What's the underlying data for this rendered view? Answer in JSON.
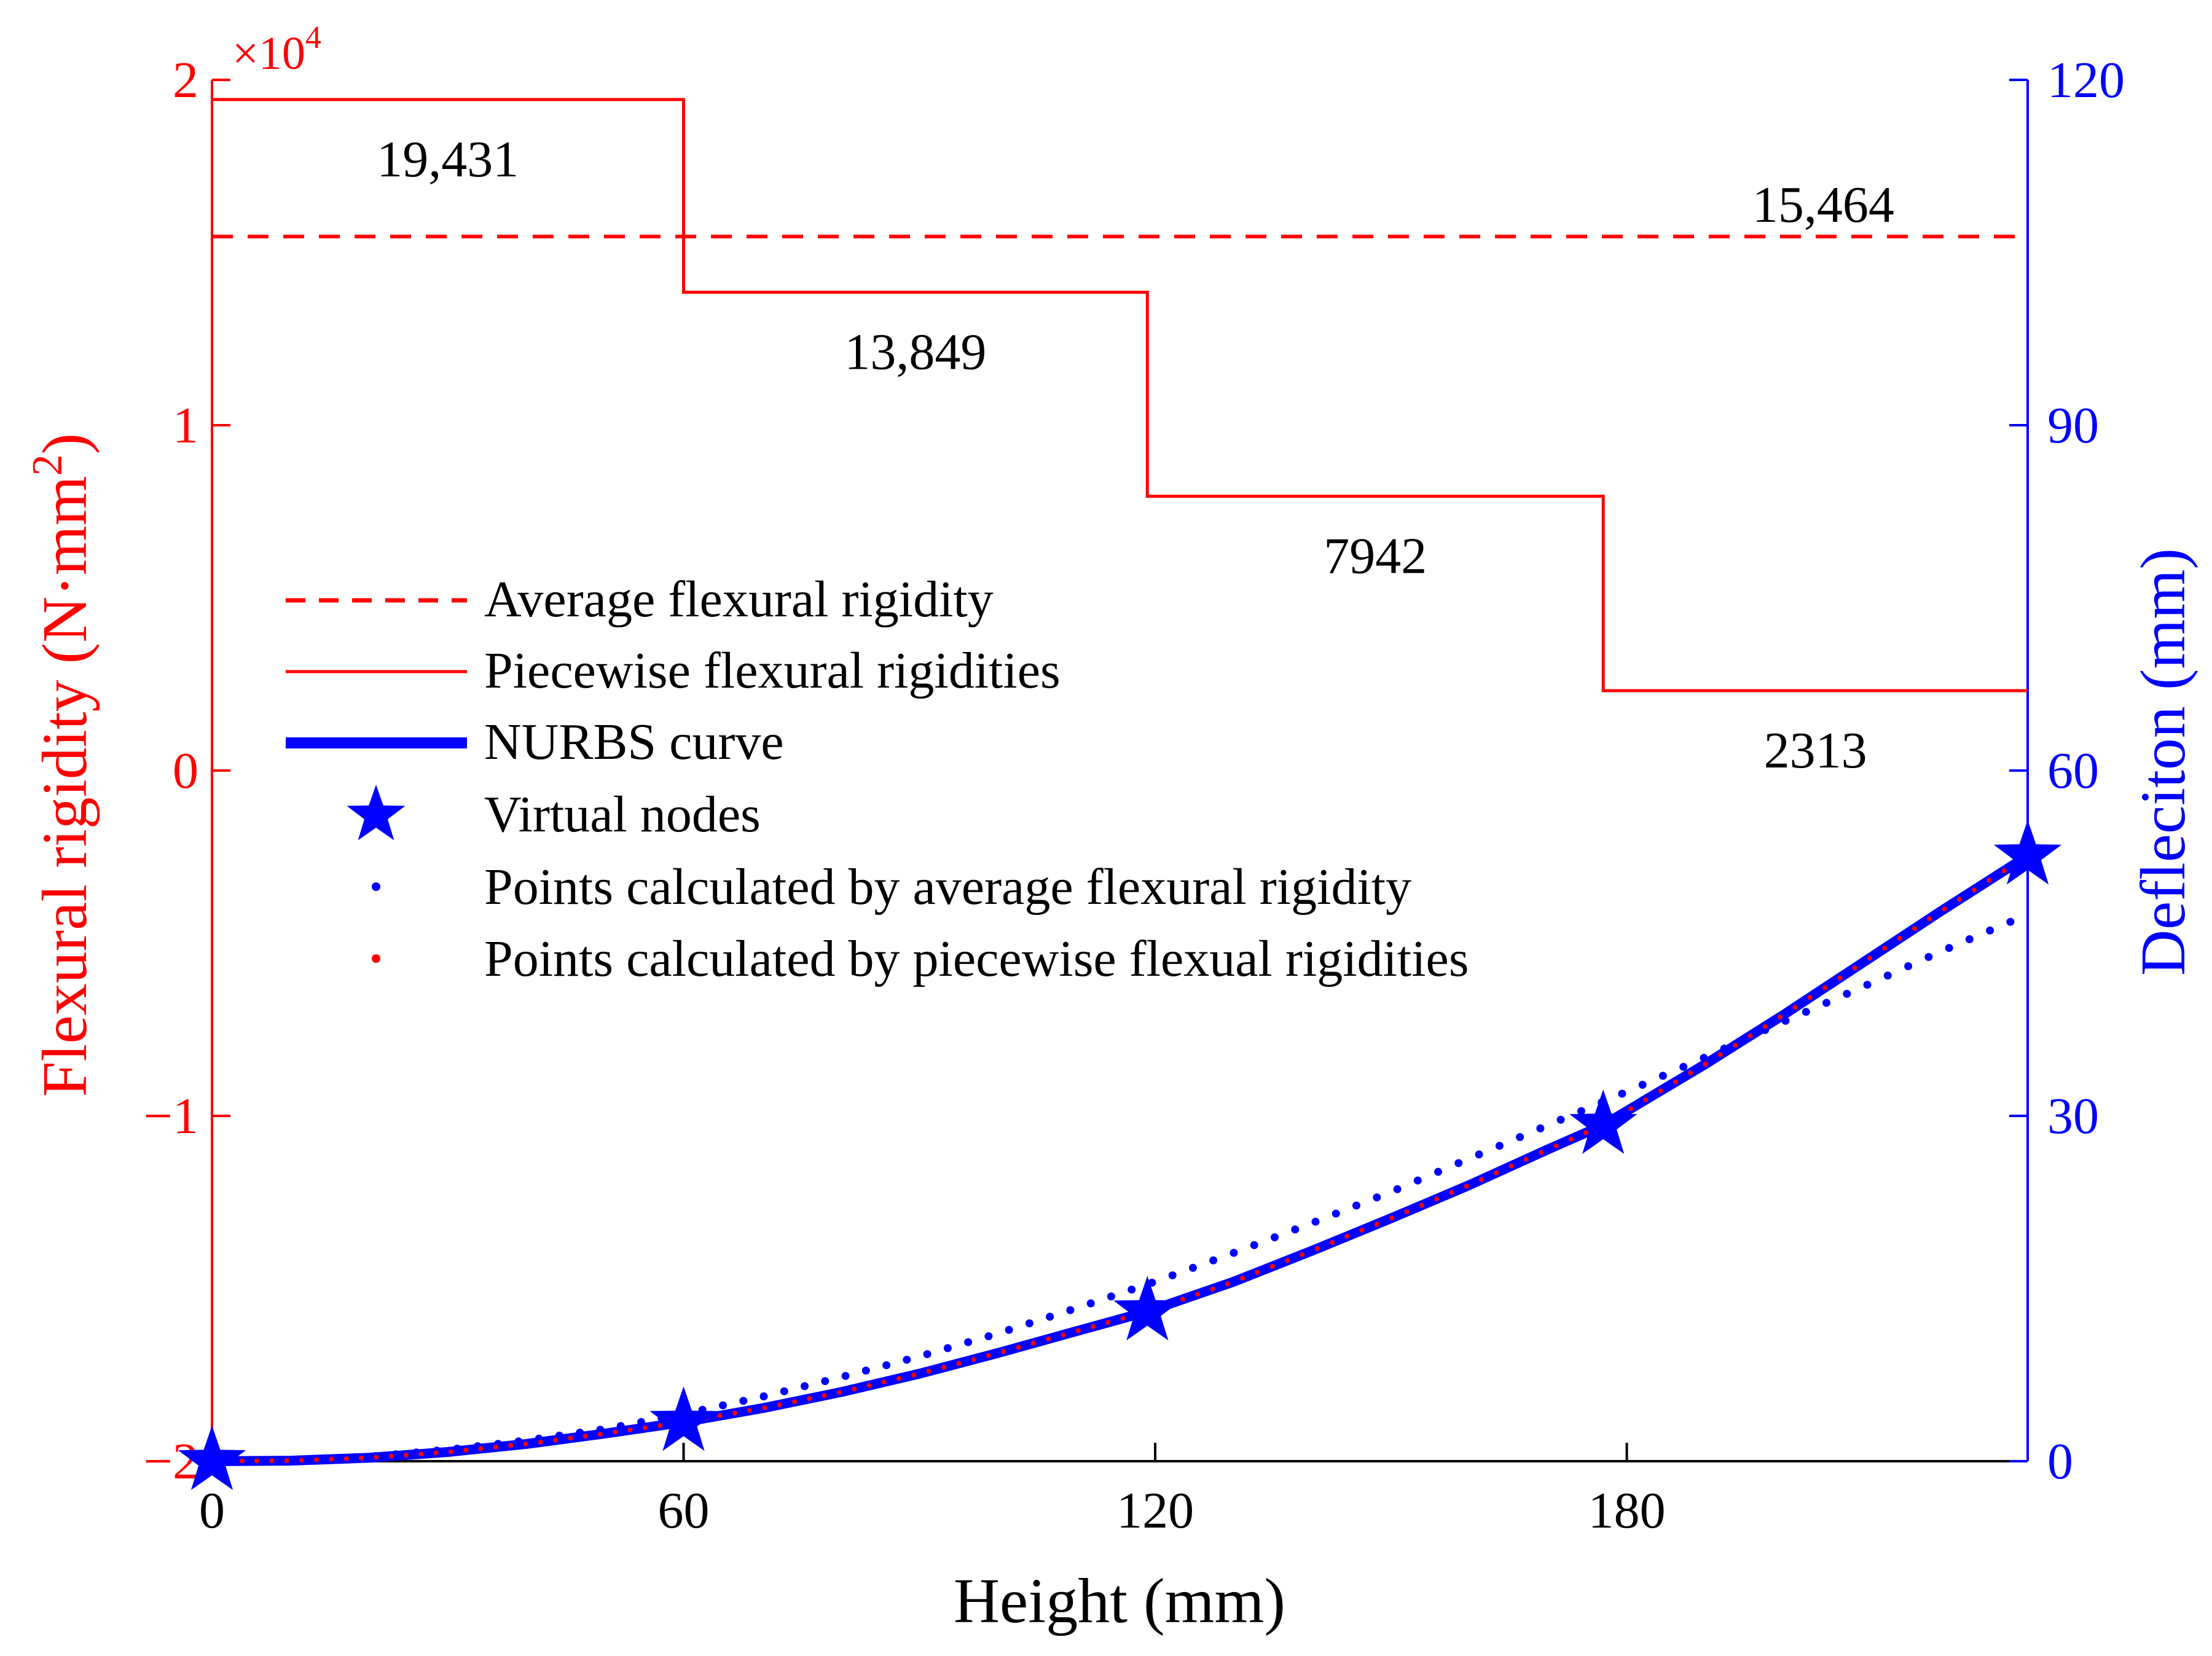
{
  "colors": {
    "left_axis": "#ff0000",
    "right_axis": "#0000ff",
    "piecewise": "#ff0000",
    "average": "#ff0000",
    "nurbs": "#0000ff",
    "text": "#000000",
    "frame": "#000000"
  },
  "chart_data": {
    "type": "line",
    "xlabel": "Height (mm)",
    "ylabel_left": "Flexural rigidity (N·mm",
    "ylabel_left_sup": "2",
    "ylabel_left_close": ")",
    "ylabel_right": "Defleciton (mm)",
    "exponent_label": "×10",
    "exponent_power": "4",
    "xlim": [
      0,
      231
    ],
    "ylim_left": [
      -2,
      2
    ],
    "ylim_right": [
      0,
      120
    ],
    "x_ticks": [
      0,
      60,
      120,
      180
    ],
    "x_tick_labels": [
      "0",
      "60",
      "120",
      "180"
    ],
    "y_left_ticks": [
      -2,
      -1,
      0,
      1,
      2
    ],
    "y_left_tick_labels": [
      "−2",
      "−1",
      "0",
      "1",
      "2"
    ],
    "y_right_ticks": [
      0,
      30,
      60,
      90,
      120
    ],
    "y_right_tick_labels": [
      "0",
      "30",
      "60",
      "90",
      "120"
    ],
    "piecewise": {
      "name": "Piecewise flexural rigidities",
      "segments": [
        {
          "x0": 0,
          "x1": 60,
          "value": 19431,
          "label": "19,431"
        },
        {
          "x0": 60,
          "x1": 119,
          "value": 13849,
          "label": "13,849"
        },
        {
          "x0": 119,
          "x1": 177,
          "value": 7942,
          "label": "7942"
        },
        {
          "x0": 177,
          "x1": 231,
          "value": 2313,
          "label": "2313"
        }
      ]
    },
    "average": {
      "name": "Average flexural rigidity",
      "value": 15464,
      "label": "15,464"
    },
    "nurbs": {
      "name": "NURBS curve",
      "x": [
        0,
        10,
        20,
        30,
        40,
        50,
        60,
        70,
        80,
        90,
        100,
        110,
        119,
        130,
        140,
        150,
        160,
        170,
        177,
        190,
        200,
        210,
        220,
        231
      ],
      "y": [
        0,
        0.05,
        0.3,
        0.8,
        1.5,
        2.4,
        3.4,
        4.6,
        6.0,
        7.6,
        9.4,
        11.3,
        13.0,
        15.6,
        18.3,
        21.1,
        24.0,
        27.1,
        29.2,
        34.5,
        38.8,
        43.3,
        47.8,
        52.6
      ]
    },
    "virtual_nodes": {
      "name": "Virtual nodes",
      "x": [
        0,
        60,
        119,
        177,
        231
      ],
      "y": [
        0,
        3.4,
        13.0,
        29.2,
        52.6
      ]
    },
    "average_points": {
      "name": "Points calculated by average flexural rigidity",
      "x": [
        0,
        10,
        20,
        30,
        40,
        50,
        60,
        70,
        80,
        90,
        100,
        110,
        120,
        130,
        140,
        150,
        160,
        170,
        180,
        190,
        200,
        210,
        220,
        231
      ],
      "y": [
        0,
        0.1,
        0.4,
        1.0,
        1.8,
        2.8,
        4.1,
        5.6,
        7.3,
        9.1,
        11.1,
        13.3,
        15.6,
        18.1,
        20.7,
        23.4,
        26.3,
        29.2,
        32.1,
        35.1,
        38.2,
        41.2,
        44.3,
        47.5
      ]
    },
    "piecewise_points": {
      "name": "Points calculated by piecewise flexual rigidities"
    },
    "legend_position": "center-left"
  }
}
